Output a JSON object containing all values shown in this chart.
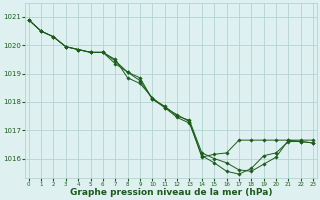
{
  "background_color": "#dff0f0",
  "grid_color": "#aacece",
  "line_color": "#1a5c1a",
  "marker_color": "#1a5c1a",
  "xlabel": "Graphe pression niveau de la mer (hPa)",
  "xlabel_fontsize": 6.5,
  "ylabel_ticks": [
    1016,
    1017,
    1018,
    1019,
    1020,
    1021
  ],
  "xticks": [
    0,
    1,
    2,
    3,
    4,
    5,
    6,
    7,
    8,
    9,
    10,
    11,
    12,
    13,
    14,
    15,
    16,
    17,
    18,
    19,
    20,
    21,
    22,
    23
  ],
  "ylim": [
    1015.3,
    1021.5
  ],
  "xlim": [
    -0.3,
    23.3
  ],
  "series": [
    [
      1020.9,
      1020.5,
      1020.3,
      1019.95,
      1019.85,
      1019.75,
      1019.75,
      1019.45,
      1019.05,
      1018.75,
      1018.1,
      1017.85,
      1017.5,
      1017.35,
      1016.2,
      1016.0,
      1015.85,
      1015.6,
      1015.55,
      1015.8,
      1016.05,
      1016.65,
      1016.6,
      1016.55
    ],
    [
      1020.9,
      1020.5,
      1020.3,
      1019.95,
      1019.85,
      1019.75,
      1019.75,
      1019.5,
      1018.85,
      1018.65,
      1018.15,
      1017.8,
      1017.45,
      1017.25,
      1016.1,
      1015.85,
      1015.55,
      1015.45,
      1015.65,
      1016.1,
      1016.2,
      1016.6,
      1016.6,
      1016.55
    ],
    [
      1020.9,
      1020.5,
      1020.3,
      1019.95,
      1019.85,
      1019.75,
      1019.75,
      1019.35,
      1019.05,
      1018.85,
      1018.1,
      1017.8,
      1017.55,
      1017.3,
      1016.05,
      1016.15,
      1016.2,
      1016.65,
      1016.65,
      1016.65,
      1016.65,
      1016.65,
      1016.65,
      1016.65
    ]
  ]
}
